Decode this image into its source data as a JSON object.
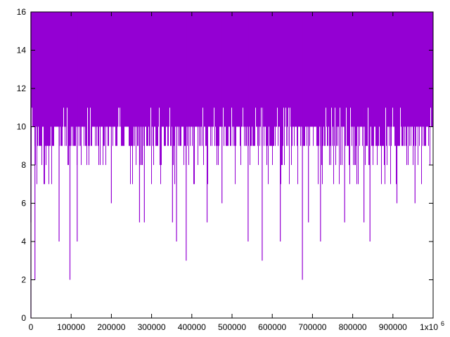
{
  "chart_data": {
    "type": "line",
    "title": "",
    "xlabel": "",
    "ylabel": "",
    "xlim": [
      0,
      1000000
    ],
    "ylim": [
      0,
      16
    ],
    "x_tick_labels": [
      "0",
      "100000",
      "200000",
      "300000",
      "400000",
      "500000",
      "600000",
      "700000",
      "800000",
      "900000",
      "1x10"
    ],
    "x_tick_exponent_label": "6",
    "y_tick_labels": [
      "0",
      "2",
      "4",
      "6",
      "8",
      "10",
      "12",
      "14",
      "16"
    ],
    "grid": false,
    "legend": "none",
    "series_color": "#9400d3",
    "series": [
      {
        "values_summary": "dense oscillation between a baseline near 9-10 and a peak of 16 at nearly every sample",
        "peak_value": 16,
        "baseline_range": [
          7,
          11
        ],
        "dips": [
          {
            "x": 0,
            "y": 5
          },
          {
            "x": 10000,
            "y": 2
          },
          {
            "x": 70000,
            "y": 4
          },
          {
            "x": 97000,
            "y": 2
          },
          {
            "x": 115000,
            "y": 4
          },
          {
            "x": 200000,
            "y": 6
          },
          {
            "x": 270000,
            "y": 5
          },
          {
            "x": 282000,
            "y": 5
          },
          {
            "x": 352000,
            "y": 5
          },
          {
            "x": 362000,
            "y": 4
          },
          {
            "x": 386000,
            "y": 3
          },
          {
            "x": 438000,
            "y": 5
          },
          {
            "x": 475000,
            "y": 6
          },
          {
            "x": 540000,
            "y": 4
          },
          {
            "x": 575000,
            "y": 3
          },
          {
            "x": 620000,
            "y": 4
          },
          {
            "x": 675000,
            "y": 2
          },
          {
            "x": 690000,
            "y": 5
          },
          {
            "x": 720000,
            "y": 4
          },
          {
            "x": 780000,
            "y": 5
          },
          {
            "x": 828000,
            "y": 5
          },
          {
            "x": 843000,
            "y": 4
          },
          {
            "x": 910000,
            "y": 6
          },
          {
            "x": 955000,
            "y": 6
          }
        ]
      }
    ]
  }
}
